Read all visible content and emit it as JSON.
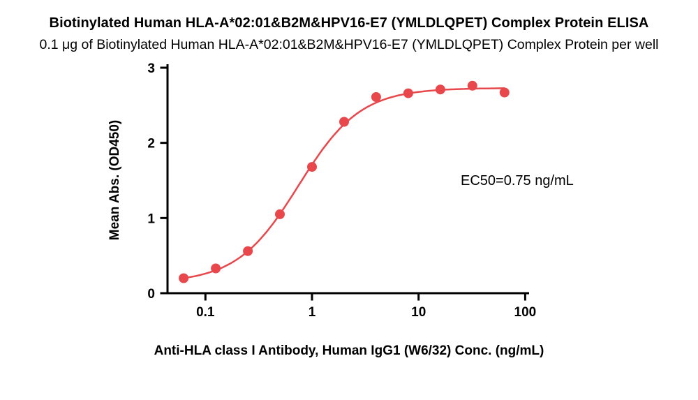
{
  "page": {
    "title": "Biotinylated Human HLA-A*02:01&B2M&HPV16-E7 (YMLDLQPET) Complex Protein ELISA",
    "subtitle": "0.1 μg of Biotinylated Human HLA-A*02:01&B2M&HPV16-E7 (YMLDLQPET) Complex Protein per well"
  },
  "chart_data": {
    "type": "scatter",
    "title": "Biotinylated Human HLA-A*02:01&B2M&HPV16-E7 (YMLDLQPET) Complex Protein ELISA",
    "subtitle": "0.1 μg of Biotinylated Human HLA-A*02:01&B2M&HPV16-E7 (YMLDLQPET) Complex Protein per well",
    "xlabel": "Anti-HLA class I Antibody, Human IgG1 (W6/32) Conc. (ng/mL)",
    "ylabel": "Mean Abs. (OD450)",
    "x_scale": "log10",
    "xlim": [
      0.05,
      120
    ],
    "ylim": [
      0,
      3
    ],
    "x_ticks": [
      0.1,
      1,
      10,
      100
    ],
    "y_ticks": [
      0,
      1,
      2,
      3
    ],
    "grid": false,
    "legend": "none",
    "annotation": "EC50=0.75 ng/mL",
    "series": [
      {
        "name": "Anti-HLA class I Antibody, Human IgG1 (W6/32)",
        "color": "#E8474C",
        "x": [
          0.0625,
          0.125,
          0.25,
          0.5,
          1,
          2,
          4,
          8,
          16,
          32,
          64
        ],
        "y": [
          0.2,
          0.33,
          0.56,
          1.05,
          1.68,
          2.28,
          2.61,
          2.66,
          2.71,
          2.76,
          2.67
        ]
      }
    ],
    "fit": {
      "model": "4PL",
      "bottom": 0.14,
      "top": 2.73,
      "ec50": 0.75,
      "hill": 1.5
    }
  },
  "colors": {
    "accent": "#E8474C",
    "axis": "#000000",
    "text": "#000000",
    "background": "#FFFFFF"
  }
}
